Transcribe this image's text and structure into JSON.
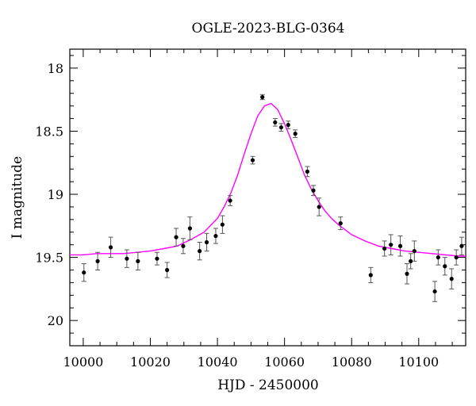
{
  "chart_data": {
    "type": "scatter",
    "title": "OGLE-2023-BLG-0364",
    "xlabel": "HJD - 2450000",
    "ylabel": "I magnitude",
    "xlim": [
      9996,
      10114
    ],
    "ylim": [
      20.2,
      17.85
    ],
    "y_inverted": true,
    "grid": false,
    "x_ticks": [
      10000,
      10020,
      10040,
      10060,
      10080,
      10100
    ],
    "y_ticks": [
      18,
      18.5,
      19,
      19.5,
      20
    ],
    "y_tick_labels": [
      "18",
      "18.5",
      "19",
      "19.5",
      "20"
    ],
    "colors": {
      "model": "#ff00ff",
      "points": "#000000"
    },
    "points": [
      {
        "x": 10000.2,
        "y": 19.62,
        "err": 0.07
      },
      {
        "x": 10004.3,
        "y": 19.53,
        "err": 0.07
      },
      {
        "x": 10008.2,
        "y": 19.42,
        "err": 0.08
      },
      {
        "x": 10013.0,
        "y": 19.51,
        "err": 0.07
      },
      {
        "x": 10016.3,
        "y": 19.53,
        "err": 0.07
      },
      {
        "x": 10022.0,
        "y": 19.51,
        "err": 0.05
      },
      {
        "x": 10025.0,
        "y": 19.6,
        "err": 0.06
      },
      {
        "x": 10027.7,
        "y": 19.34,
        "err": 0.07
      },
      {
        "x": 10029.8,
        "y": 19.41,
        "err": 0.06
      },
      {
        "x": 10031.8,
        "y": 19.27,
        "err": 0.09
      },
      {
        "x": 10034.7,
        "y": 19.45,
        "err": 0.07
      },
      {
        "x": 10036.8,
        "y": 19.38,
        "err": 0.07
      },
      {
        "x": 10039.5,
        "y": 19.33,
        "err": 0.06
      },
      {
        "x": 10041.5,
        "y": 19.24,
        "err": 0.07
      },
      {
        "x": 10043.8,
        "y": 19.05,
        "err": 0.04
      },
      {
        "x": 10050.5,
        "y": 18.73,
        "err": 0.03
      },
      {
        "x": 10053.4,
        "y": 18.23,
        "err": 0.02
      },
      {
        "x": 10057.2,
        "y": 18.43,
        "err": 0.03
      },
      {
        "x": 10059.0,
        "y": 18.47,
        "err": 0.03
      },
      {
        "x": 10061.1,
        "y": 18.45,
        "err": 0.03
      },
      {
        "x": 10063.2,
        "y": 18.52,
        "err": 0.03
      },
      {
        "x": 10066.8,
        "y": 18.82,
        "err": 0.04
      },
      {
        "x": 10068.6,
        "y": 18.97,
        "err": 0.04
      },
      {
        "x": 10070.3,
        "y": 19.1,
        "err": 0.07
      },
      {
        "x": 10076.7,
        "y": 19.23,
        "err": 0.05
      },
      {
        "x": 10085.7,
        "y": 19.64,
        "err": 0.06
      },
      {
        "x": 10089.8,
        "y": 19.43,
        "err": 0.06
      },
      {
        "x": 10091.7,
        "y": 19.4,
        "err": 0.08
      },
      {
        "x": 10094.5,
        "y": 19.41,
        "err": 0.08
      },
      {
        "x": 10096.5,
        "y": 19.63,
        "err": 0.08
      },
      {
        "x": 10097.6,
        "y": 19.53,
        "err": 0.06
      },
      {
        "x": 10098.7,
        "y": 19.45,
        "err": 0.08
      },
      {
        "x": 10104.8,
        "y": 19.77,
        "err": 0.08
      },
      {
        "x": 10105.8,
        "y": 19.5,
        "err": 0.06
      },
      {
        "x": 10107.8,
        "y": 19.57,
        "err": 0.07
      },
      {
        "x": 10109.8,
        "y": 19.67,
        "err": 0.08
      },
      {
        "x": 10111.2,
        "y": 19.5,
        "err": 0.06
      },
      {
        "x": 10112.8,
        "y": 19.41,
        "err": 0.07
      }
    ],
    "model": {
      "x": [
        9996,
        10000,
        10004,
        10008,
        10012,
        10016,
        10020,
        10024,
        10028,
        10032,
        10036,
        10040,
        10042,
        10044,
        10046,
        10048,
        10050,
        10052,
        10054,
        10056,
        10058,
        10060,
        10062,
        10064,
        10066,
        10068,
        10070,
        10072,
        10074,
        10076,
        10080,
        10084,
        10088,
        10092,
        10096,
        10100,
        10104,
        10108,
        10112,
        10114
      ],
      "y": [
        19.48,
        19.48,
        19.47,
        19.47,
        19.47,
        19.46,
        19.45,
        19.43,
        19.41,
        19.36,
        19.3,
        19.19,
        19.1,
        18.99,
        18.85,
        18.68,
        18.52,
        18.38,
        18.3,
        18.28,
        18.33,
        18.44,
        18.57,
        18.71,
        18.85,
        18.96,
        19.05,
        19.13,
        19.19,
        19.24,
        19.32,
        19.37,
        19.41,
        19.43,
        19.45,
        19.46,
        19.47,
        19.48,
        19.49,
        19.49
      ]
    }
  }
}
